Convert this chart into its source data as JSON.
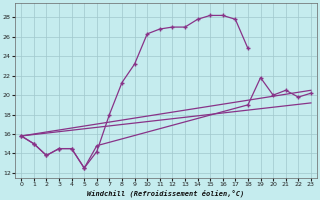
{
  "xlabel": "Windchill (Refroidissement éolien,°C)",
  "bg_color": "#c5ecee",
  "grid_color": "#a0c8cc",
  "line_color": "#883388",
  "xlim": [
    -0.5,
    23.5
  ],
  "ylim": [
    11.5,
    29.5
  ],
  "yticks": [
    12,
    14,
    16,
    18,
    20,
    22,
    24,
    26,
    28
  ],
  "xticks": [
    0,
    1,
    2,
    3,
    4,
    5,
    6,
    7,
    8,
    9,
    10,
    11,
    12,
    13,
    14,
    15,
    16,
    17,
    18,
    19,
    20,
    21,
    22,
    23
  ],
  "line1_x": [
    0,
    1,
    2,
    3,
    4,
    5,
    6,
    7,
    8,
    9,
    10,
    11,
    12,
    13,
    14,
    15,
    16,
    17,
    18
  ],
  "line1_y": [
    15.8,
    15.0,
    13.8,
    14.5,
    14.5,
    12.5,
    14.2,
    18.0,
    21.3,
    23.2,
    26.3,
    26.8,
    27.0,
    27.0,
    27.8,
    28.2,
    28.2,
    27.8,
    24.8
  ],
  "line2_x": [
    0,
    1,
    2,
    3,
    4,
    5,
    6,
    18,
    19,
    20,
    21,
    22,
    23
  ],
  "line2_y": [
    15.8,
    15.0,
    13.8,
    14.5,
    14.5,
    12.5,
    14.8,
    19.0,
    21.8,
    20.0,
    20.5,
    19.8,
    20.2
  ],
  "line2_marker_x": [
    0,
    1,
    2,
    3,
    4,
    5,
    6,
    18,
    19,
    20,
    21,
    22,
    23
  ],
  "line2_marker_y": [
    15.8,
    15.0,
    13.8,
    14.5,
    14.5,
    12.5,
    14.8,
    19.0,
    21.8,
    20.0,
    20.5,
    19.8,
    20.2
  ],
  "line3_x": [
    0,
    23
  ],
  "line3_y": [
    15.8,
    20.5
  ],
  "line4_x": [
    0,
    23
  ],
  "line4_y": [
    15.8,
    19.2
  ]
}
